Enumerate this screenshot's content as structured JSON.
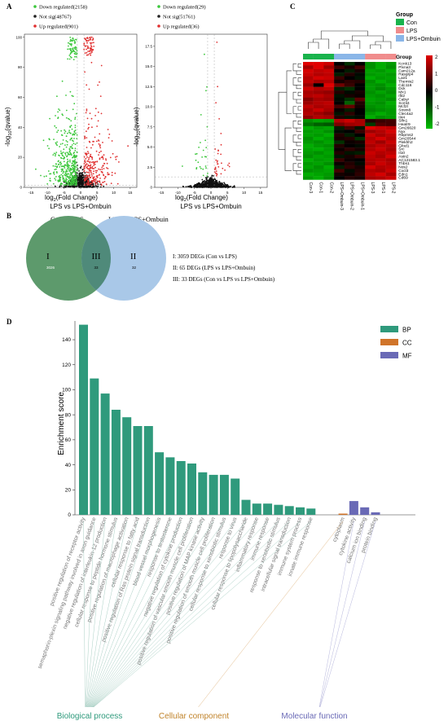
{
  "panel_labels": {
    "a": "A",
    "b": "B",
    "c": "C",
    "d": "D"
  },
  "volcano": [
    {
      "legend": {
        "down": "Down regulated(2158)",
        "ns": "Not sig(48767)",
        "up": "Up regulated(901)"
      },
      "xlabel_main": "log",
      "xlabel_sub": "2",
      "xlabel_rest": "(Fold Change)",
      "ylabel_main": "-log",
      "ylabel_sub": "10",
      "ylabel_rest": "(qvalue)",
      "title": "LPS vs LPS+Ombuin",
      "x_ticks": [
        "-15",
        "-10",
        "-5",
        "0",
        "5",
        "10",
        "15"
      ],
      "y_ticks": [
        "0",
        "20",
        "40",
        "60",
        "80",
        "100"
      ],
      "xlim": [
        -17,
        17
      ],
      "ylim": [
        0,
        102
      ]
    },
    {
      "legend": {
        "down": "Down regulated(29)",
        "ns": "Not sig(51761)",
        "up": "Up regulated(36)"
      },
      "xlabel_main": "log",
      "xlabel_sub": "2",
      "xlabel_rest": "(Fold Change)",
      "ylabel_main": "-log",
      "ylabel_sub": "10",
      "ylabel_rest": "(qvalue)",
      "title": "LPS vs LPS+Ombuin",
      "x_ticks": [
        "-15",
        "-10",
        "-5",
        "0",
        "5",
        "10",
        "15"
      ],
      "y_ticks": [
        "0",
        "2.5",
        "5.0",
        "7.5",
        "10.0",
        "12.5",
        "15.0",
        "17.5"
      ],
      "xlim": [
        -17,
        17
      ],
      "ylim": [
        0,
        19
      ]
    }
  ],
  "venn": {
    "left_title": "Con vs LPS",
    "right_title": "LPS vs LPS+Ombuin",
    "region_labels": [
      "I",
      "III",
      "II"
    ],
    "region_counts": [
      "3026",
      "33",
      "32"
    ],
    "notes": [
      "I: 3059 DEGs (Con vs LPS)",
      "II: 65 DEGs (LPS vs LPS+Ombuin)",
      "III: 33 DEGs (Con vs LPS vs LPS+Ombuin)"
    ],
    "colors": {
      "left": "#5d9a6c",
      "right": "#a9c8e8",
      "overlap": "#4f8a7a"
    }
  },
  "heatmap": {
    "legend_title": "Group",
    "groups": [
      {
        "name": "Con",
        "color": "#19b34c"
      },
      {
        "name": "LPS",
        "color": "#f08c8c"
      },
      {
        "name": "LPS+Ombuin",
        "color": "#8ab6e8"
      }
    ],
    "bar_label": "Group",
    "scale_ticks": [
      "2",
      "1",
      "0",
      "-1",
      "-2"
    ],
    "columns": [
      "Con-3",
      "Con-1",
      "Con-2",
      "LPS+Ombuin-3",
      "LPS+Ombuin-2",
      "LPS+Ombuin-1",
      "LPS-3",
      "LPS-1",
      "LPS-2"
    ],
    "column_groups": [
      0,
      0,
      0,
      2,
      2,
      2,
      1,
      1,
      1
    ],
    "genes": [
      "Kcnk13",
      "Plxna3",
      "Fam212a",
      "Rasgrp4",
      "Lair1",
      "Themis2",
      "Cdc116",
      "Dck",
      "Mx1",
      "Ifit2",
      "Cabyr",
      "Scml4",
      "Mcf2l",
      "Smim8",
      "Clec4a2",
      "Il44",
      "Slfn1",
      "Heatr9",
      "Gm26620",
      "Nyx",
      "Rbpms2",
      "Gm20544",
      "Plekhh2",
      "Gfod1",
      "Src",
      "Il10",
      "Astn2",
      "AC121583.1",
      "Thbs1",
      "Nos2",
      "Cxcl3",
      "Edn1",
      "Cd69"
    ],
    "values": [
      [
        2,
        2,
        1.8,
        0,
        -0.5,
        0,
        -1.5,
        -1.8,
        -1.6
      ],
      [
        1.5,
        2,
        1.4,
        0.5,
        0.2,
        0.6,
        -1.5,
        -1.8,
        -1.5
      ],
      [
        1.9,
        1.7,
        1.8,
        0,
        -0.3,
        0.2,
        -1.7,
        -1.6,
        -1.8
      ],
      [
        1.8,
        1.6,
        1.7,
        -0.3,
        0.3,
        -0.1,
        -1.6,
        -1.7,
        -1.6
      ],
      [
        1.6,
        1.9,
        1.8,
        0.5,
        0,
        -0.2,
        -1.8,
        -1.6,
        -1.7
      ],
      [
        1.7,
        1.5,
        1.6,
        0.2,
        0.4,
        0.3,
        -1.5,
        -1.8,
        -1.6
      ],
      [
        1.4,
        0,
        2,
        1,
        0.5,
        0,
        -1.6,
        -1.5,
        -1.8
      ],
      [
        1.8,
        1.6,
        1.7,
        -0.3,
        -0.5,
        0,
        -1.6,
        -1.4,
        -1.6
      ],
      [
        1.5,
        1.4,
        1.3,
        0.3,
        -0.1,
        0.2,
        -1.5,
        -1.7,
        -1.5
      ],
      [
        1.6,
        1.7,
        1.5,
        -0.2,
        0.2,
        0.1,
        -1.6,
        -1.5,
        -1.7
      ],
      [
        1.2,
        1.5,
        1.4,
        -0.1,
        -0.5,
        0.8,
        -1.7,
        -1.6,
        -1.5
      ],
      [
        1.4,
        1.6,
        1.7,
        0,
        -1,
        0.3,
        -1.6,
        -1.5,
        -1.8
      ],
      [
        1.7,
        1.5,
        1.6,
        0.6,
        0.9,
        0.2,
        -1.5,
        -1.6,
        -1.7
      ],
      [
        1.5,
        1.8,
        1.5,
        0.1,
        -0.3,
        0,
        -1.4,
        -1.5,
        -1.6
      ],
      [
        1.6,
        1.4,
        1.2,
        -0.2,
        0.4,
        0,
        -1.6,
        -1.8,
        -1.6
      ],
      [
        1.3,
        1.6,
        1.5,
        0.3,
        -0.2,
        -0.1,
        -1.8,
        -1.5,
        -1.6
      ],
      [
        -1.5,
        -1.7,
        -1.6,
        1.6,
        1.8,
        1.5,
        0.3,
        0.5,
        0.6
      ],
      [
        -1.2,
        -1,
        -0.9,
        1.1,
        1.4,
        1.5,
        -0.6,
        0.7,
        0.6
      ],
      [
        -1.8,
        -1.6,
        -1.7,
        -0.3,
        0.6,
        -0.2,
        2,
        1.8,
        1.7
      ],
      [
        -1.6,
        -1.7,
        -1.5,
        -0.1,
        0,
        0.5,
        1.4,
        1.6,
        1.9
      ],
      [
        -1.7,
        -1.6,
        -1.8,
        0.3,
        -0.3,
        0,
        1.8,
        1.5,
        1.7
      ],
      [
        -1.5,
        -1.8,
        -1.6,
        0.2,
        0.3,
        -0.5,
        1.6,
        1.9,
        1.6
      ],
      [
        -1.6,
        -1.5,
        -1.7,
        -0.5,
        0.1,
        0.2,
        1.7,
        1.4,
        1.8
      ],
      [
        -1.8,
        -1.6,
        -1.5,
        0.3,
        0,
        -0.1,
        1.5,
        1.7,
        1.6
      ],
      [
        -1.7,
        -1.8,
        -1.6,
        0.1,
        0.4,
        0.2,
        1.6,
        1.8,
        1.5
      ],
      [
        -1.6,
        -1.5,
        -1.7,
        0.3,
        -0.2,
        -0.3,
        1.8,
        1.6,
        1.7
      ],
      [
        -1.5,
        -1.7,
        -1.6,
        -0.2,
        0.2,
        0.5,
        1.7,
        1.5,
        1.9
      ],
      [
        -1.8,
        -1.6,
        -1.7,
        0.5,
        0.1,
        0,
        1.6,
        1.7,
        1.5
      ],
      [
        -1.6,
        -1.7,
        -1.5,
        0.1,
        0.3,
        -0.1,
        1.5,
        1.8,
        1.6
      ],
      [
        -1.7,
        -1.5,
        -1.8,
        -0.3,
        0.4,
        0.2,
        1.9,
        1.6,
        1.7
      ],
      [
        -1.5,
        -1.6,
        -1.7,
        0.6,
        -0.1,
        0.3,
        1.6,
        1.5,
        1.8
      ],
      [
        -1.8,
        -1.7,
        -1.6,
        0.2,
        0.1,
        0.4,
        1.7,
        1.9,
        1.5
      ],
      [
        -1.6,
        -1.8,
        -1.5,
        0,
        0.3,
        0.2,
        1.5,
        1.6,
        1.8
      ]
    ]
  },
  "chart_data": {
    "type": "bar",
    "ylabel": "Enrichment score",
    "y_ticks": [
      "0",
      "20",
      "40",
      "60",
      "80",
      "100",
      "120",
      "140"
    ],
    "ylim": [
      0,
      155
    ],
    "legend": [
      {
        "name": "BP",
        "color": "#2f9a7c"
      },
      {
        "name": "CC",
        "color": "#d0742a"
      },
      {
        "name": "MF",
        "color": "#6a6ab6"
      }
    ],
    "group_labels": [
      {
        "name": "Biological process",
        "color": "#2f9a7c"
      },
      {
        "name": "Cellular component",
        "color": "#c0832a"
      },
      {
        "name": "Molecular function",
        "color": "#6a6ab6"
      }
    ],
    "categories": [
      "positive regulation of receptor activity",
      "semaphorin-plexin signaling pathway involved in axon guidance",
      "negative regulation of interleukin-12 production",
      "cellular response to peptide hormone stimulus",
      "positive regulation of macrophage activation",
      "cellular response to fatty acid",
      "positive regulation of Ras protein signal transduction",
      "blood vessel morphogenesis",
      "response to testosterone",
      "negative regulation of cytokine production",
      "positive regulation of vascular smooth muscle cell proliferation",
      "positive regulation of MAP kinase activity",
      "positive regulation of smooth muscle cell proliferation",
      "cellular response to xenobiotic stimulus",
      "response to virus",
      "cellular response to lipopolysaccharide",
      "inflammatory response",
      "immune response",
      "response to xenobiotic stimulus",
      "intracellular signal transduction",
      "immune system process",
      "innate immune response",
      "cytoplasm",
      "cytokine activity",
      "calcium ion binding",
      "protein binding"
    ],
    "values": [
      152,
      109,
      97,
      84,
      78,
      71,
      71,
      50,
      46,
      43,
      41,
      34,
      32,
      32,
      29,
      12,
      9,
      9,
      8,
      7,
      6,
      5,
      1,
      11,
      6,
      2
    ],
    "groups": [
      "BP",
      "BP",
      "BP",
      "BP",
      "BP",
      "BP",
      "BP",
      "BP",
      "BP",
      "BP",
      "BP",
      "BP",
      "BP",
      "BP",
      "BP",
      "BP",
      "BP",
      "BP",
      "BP",
      "BP",
      "BP",
      "BP",
      "CC",
      "MF",
      "MF",
      "MF"
    ],
    "grid": false
  }
}
